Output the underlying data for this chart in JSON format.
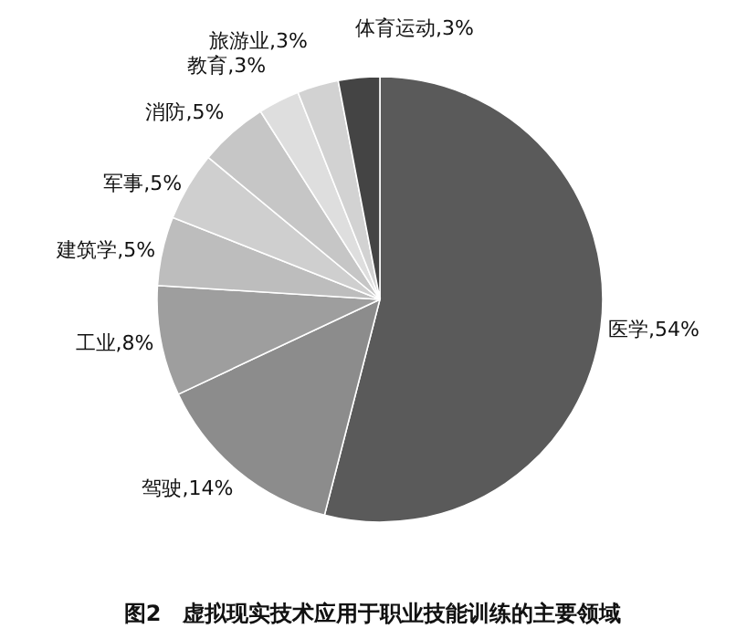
{
  "chart_data": {
    "type": "pie",
    "title": "图2　虚拟现实技术应用于职业技能训练的主要领域",
    "categories": [
      "医学",
      "驾驶",
      "工业",
      "建筑学",
      "军事",
      "消防",
      "教育",
      "旅游业",
      "体育运动"
    ],
    "values": [
      54,
      14,
      8,
      5,
      5,
      5,
      3,
      3,
      3
    ],
    "value_labels": [
      "54%",
      "14%",
      "8%",
      "5%",
      "5%",
      "5%",
      "3%",
      "3%",
      "3%"
    ],
    "colors": [
      "#5a5a5a",
      "#8c8c8c",
      "#9e9e9e",
      "#bdbdbd",
      "#cfcfcf",
      "#c6c6c6",
      "#dedede",
      "#d2d2d2",
      "#444444"
    ],
    "legend": false
  }
}
